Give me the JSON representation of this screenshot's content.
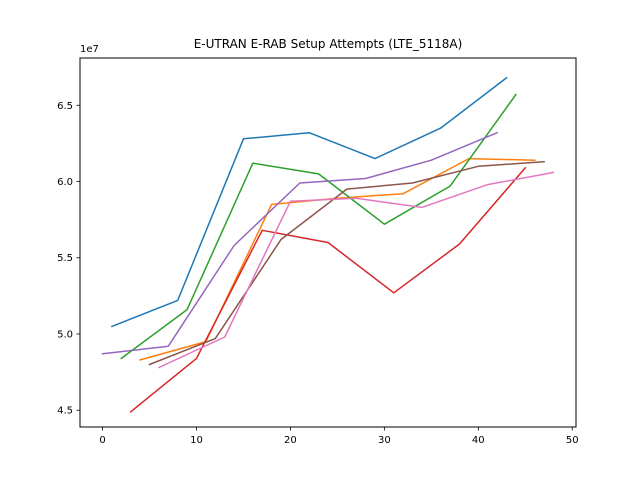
{
  "chart_data": {
    "type": "line",
    "title": "E-UTRAN E-RAB Setup Attempts (LTE_5118A)",
    "xlabel": "",
    "ylabel": "",
    "y_offset_label": "1e7",
    "xlim": [
      -2.4,
      50.4
    ],
    "ylim": [
      4.39,
      6.81
    ],
    "xticks": [
      0,
      10,
      20,
      30,
      40,
      50
    ],
    "yticks": [
      4.5,
      5.0,
      5.5,
      6.0,
      6.5
    ],
    "ytick_labels": [
      "4.5",
      "5.0",
      "5.5",
      "6.0",
      "6.5"
    ],
    "grid": false,
    "legend": "none",
    "series": [
      {
        "color": "#1f77b4",
        "x": [
          1,
          8,
          15,
          22,
          29,
          36,
          43
        ],
        "y": [
          5.05,
          5.22,
          6.28,
          6.32,
          6.15,
          6.35,
          6.68
        ]
      },
      {
        "color": "#ff7f0e",
        "x": [
          4,
          11,
          18,
          25,
          32,
          39,
          46
        ],
        "y": [
          4.83,
          4.95,
          5.85,
          5.89,
          5.92,
          6.15,
          6.14
        ]
      },
      {
        "color": "#2ca02c",
        "x": [
          2,
          9,
          16,
          23,
          30,
          37,
          44
        ],
        "y": [
          4.84,
          5.16,
          6.12,
          6.05,
          5.72,
          5.97,
          6.57
        ]
      },
      {
        "color": "#d62728",
        "x": [
          3,
          10,
          17,
          24,
          31,
          38,
          45
        ],
        "y": [
          4.49,
          4.84,
          5.68,
          5.6,
          5.27,
          5.59,
          6.09
        ]
      },
      {
        "color": "#9467bd",
        "x": [
          0,
          7,
          14,
          21,
          28,
          35,
          42
        ],
        "y": [
          4.87,
          4.92,
          5.58,
          5.99,
          6.02,
          6.14,
          6.32
        ]
      },
      {
        "color": "#8c564b",
        "x": [
          5,
          12,
          19,
          26,
          33,
          40,
          47
        ],
        "y": [
          4.8,
          4.97,
          5.62,
          5.95,
          5.99,
          6.1,
          6.13
        ]
      },
      {
        "color": "#e377c2",
        "x": [
          6,
          13,
          20,
          27,
          34,
          41,
          48
        ],
        "y": [
          4.78,
          4.98,
          5.87,
          5.89,
          5.83,
          5.98,
          6.06
        ]
      }
    ]
  }
}
